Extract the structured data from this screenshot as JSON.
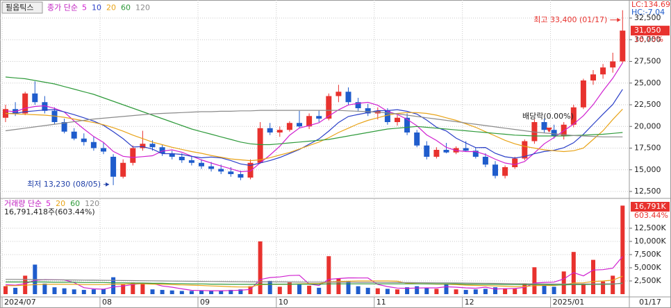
{
  "chart_data": [
    {
      "type": "candlestick",
      "title": "필옵틱스",
      "legend_label": "종가 단순",
      "up_color": "#e8322e",
      "down_color": "#1f5ccc",
      "open": [
        21000,
        22000,
        21500,
        23800,
        22800,
        21800,
        20500,
        19400,
        18600,
        18200,
        17500,
        16500,
        14200,
        15800,
        17500,
        18000,
        17600,
        16900,
        16500,
        16100,
        15800,
        15400,
        15100,
        14800,
        14500,
        14100,
        15800,
        19800,
        19300,
        19600,
        20400,
        20000,
        21200,
        20900,
        23500,
        24000,
        22800,
        22100,
        21500,
        21800,
        20500,
        21000,
        19300,
        17800,
        16500,
        17300,
        17000,
        17500,
        17200,
        16500,
        15600,
        14300,
        15300,
        16300,
        18300,
        20500,
        19600,
        18900,
        20200,
        22200,
        25300,
        26000,
        26800,
        27500
      ],
      "high": [
        22500,
        22800,
        24000,
        25200,
        23500,
        22200,
        20900,
        19800,
        19200,
        18800,
        18200,
        16800,
        16200,
        17800,
        19500,
        18400,
        17900,
        17200,
        16900,
        16500,
        16200,
        15900,
        15600,
        15300,
        14900,
        16200,
        20500,
        20400,
        20000,
        20600,
        21800,
        21500,
        21900,
        23800,
        24800,
        24500,
        23300,
        22600,
        22200,
        22100,
        21300,
        21500,
        19600,
        18300,
        17600,
        18100,
        17700,
        18300,
        17600,
        16900,
        16000,
        15500,
        16500,
        18500,
        20800,
        20900,
        20200,
        20500,
        22500,
        25500,
        26500,
        27200,
        28500,
        33400
      ],
      "low": [
        20500,
        21200,
        21300,
        22500,
        21500,
        20300,
        19200,
        18400,
        17800,
        17200,
        16800,
        13230,
        14000,
        15500,
        17200,
        17200,
        16600,
        16200,
        15800,
        15500,
        15100,
        14800,
        14500,
        14200,
        13800,
        13900,
        15700,
        19000,
        18800,
        19400,
        19800,
        19700,
        20500,
        20700,
        22800,
        22500,
        21800,
        21200,
        20800,
        20200,
        20100,
        19000,
        17600,
        16200,
        16300,
        16900,
        16800,
        17100,
        16300,
        15300,
        14000,
        14000,
        15100,
        16100,
        18000,
        19300,
        18600,
        18500,
        19900,
        22000,
        24800,
        25500,
        26200,
        27300
      ],
      "close": [
        22000,
        21500,
        23800,
        22800,
        21800,
        20500,
        19400,
        18600,
        18200,
        17500,
        17100,
        14200,
        15800,
        17500,
        18000,
        17600,
        16900,
        16500,
        16100,
        15800,
        15400,
        15100,
        14800,
        14500,
        14100,
        15800,
        19800,
        19300,
        19600,
        20400,
        20000,
        21200,
        20900,
        23500,
        24000,
        22800,
        22100,
        21500,
        21800,
        20500,
        21000,
        19300,
        17800,
        16500,
        17300,
        17000,
        17500,
        17200,
        16500,
        15600,
        14300,
        15300,
        16300,
        18300,
        20500,
        19600,
        18900,
        20200,
        22200,
        25300,
        26000,
        26800,
        27500,
        31050
      ],
      "series": [
        {
          "name": "5",
          "color": "#d020d0",
          "values": [
            21800,
            21700,
            22100,
            22300,
            22380,
            22080,
            21660,
            20620,
            19700,
            18840,
            18160,
            17120,
            16560,
            16420,
            16520,
            16620,
            17160,
            17300,
            17020,
            16580,
            16140,
            15780,
            15440,
            15120,
            14780,
            14860,
            15800,
            16700,
            17720,
            18980,
            19820,
            20100,
            20420,
            21200,
            21920,
            22480,
            22660,
            22780,
            22440,
            21740,
            21380,
            20820,
            20080,
            19020,
            18380,
            17580,
            17220,
            17100,
            17100,
            16760,
            16220,
            15780,
            15600,
            15960,
            16940,
            18000,
            18720,
            19500,
            20280,
            21240,
            22520,
            24100,
            25560,
            27330
          ]
        },
        {
          "name": "10",
          "color": "#2a3fc8",
          "values": [
            21500,
            21500,
            21700,
            21800,
            21900,
            21940,
            21680,
            21360,
            21000,
            20610,
            20120,
            19390,
            18590,
            17630,
            17680,
            17390,
            16860,
            16860,
            16770,
            16550,
            16380,
            16470,
            16370,
            16070,
            15680,
            15500,
            15790,
            16070,
            16420,
            16880,
            17340,
            17950,
            18560,
            19460,
            20450,
            21150,
            21380,
            21600,
            21820,
            21830,
            21930,
            21740,
            21430,
            20730,
            19910,
            19480,
            18650,
            18090,
            17560,
            17570,
            16900,
            16500,
            16350,
            16530,
            16850,
            17110,
            17250,
            17550,
            18120,
            19090,
            20260,
            21410,
            22530,
            24280
          ]
        },
        {
          "name": "20",
          "color": "#e8a317",
          "values": [
            21500,
            21450,
            21400,
            21350,
            21300,
            21200,
            21050,
            20850,
            20650,
            20450,
            20200,
            19850,
            19450,
            19000,
            18600,
            18200,
            17900,
            17600,
            17350,
            17100,
            16900,
            16650,
            16450,
            16250,
            16150,
            16050,
            16150,
            16400,
            16700,
            17000,
            17400,
            17800,
            18200,
            18700,
            19300,
            19800,
            20300,
            20700,
            21000,
            21300,
            21500,
            21600,
            21600,
            21500,
            21300,
            21000,
            20700,
            20300,
            19900,
            19400,
            18900,
            18400,
            18000,
            17700,
            17500,
            17300,
            17200,
            17100,
            17200,
            17500,
            18500,
            19500,
            20800,
            22000
          ]
        },
        {
          "name": "60",
          "color": "#2e9a3a",
          "values": [
            25700,
            25600,
            25500,
            25300,
            25100,
            24900,
            24600,
            24300,
            24000,
            23700,
            23300,
            22900,
            22500,
            22100,
            21700,
            21300,
            20900,
            20500,
            20100,
            19700,
            19400,
            19100,
            18800,
            18500,
            18200,
            18000,
            17900,
            17900,
            18000,
            18100,
            18200,
            18300,
            18400,
            18500,
            18700,
            18900,
            19100,
            19300,
            19500,
            19700,
            19800,
            19900,
            20000,
            19900,
            19800,
            19700,
            19600,
            19500,
            19400,
            19300,
            19200,
            19100,
            19000,
            18950,
            18900,
            18900,
            18900,
            18900,
            18950,
            19000,
            19050,
            19100,
            19200,
            19300
          ]
        },
        {
          "name": "120",
          "color": "#8a8a8a",
          "values": [
            19500,
            19650,
            19800,
            19950,
            20100,
            20250,
            20400,
            20550,
            20700,
            20850,
            20950,
            21050,
            21150,
            21250,
            21350,
            21450,
            21500,
            21550,
            21600,
            21650,
            21700,
            21700,
            21750,
            21750,
            21800,
            21800,
            21850,
            21850,
            21850,
            21850,
            21850,
            21850,
            21850,
            21850,
            21850,
            21800,
            21750,
            21700,
            21650,
            21550,
            21450,
            21300,
            21150,
            21000,
            20850,
            20700,
            20550,
            20400,
            20250,
            20100,
            19950,
            19800,
            19650,
            19500,
            19350,
            19250,
            19150,
            19050,
            18950,
            18900,
            18850,
            18800,
            18800,
            18800
          ]
        }
      ],
      "ylim": [
        11780,
        34260
      ],
      "yticks": [
        {
          "value": 12500,
          "label": "12,500"
        },
        {
          "value": 15000,
          "label": "15,000"
        },
        {
          "value": 17500,
          "label": "17,500"
        },
        {
          "value": 20000,
          "label": "20,000"
        },
        {
          "value": 22500,
          "label": "22,500"
        },
        {
          "value": 25000,
          "label": "25,000"
        },
        {
          "value": 27500,
          "label": "27,500"
        },
        {
          "value": 30000,
          "label": "30,000"
        },
        {
          "value": 32500,
          "label": "32,500"
        }
      ],
      "grid": true,
      "annotations": {
        "max": "최고 33,400 (01/17)",
        "min": "최저 13,230 (08/05)",
        "ex_dividend": "배당락(0.00%)"
      },
      "right_labels": {
        "lc": "LC:134.69",
        "hc": "HC:-7.04",
        "last": "31,050",
        "change": "16.73%"
      }
    },
    {
      "type": "bar",
      "title": "거래량 단순",
      "info": "16,791,418주(603.44%)",
      "categories": [
        "2024/07",
        null,
        null,
        null,
        null,
        null,
        null,
        null,
        null,
        null,
        "08",
        null,
        null,
        null,
        null,
        null,
        null,
        null,
        null,
        null,
        "09",
        null,
        null,
        null,
        null,
        null,
        null,
        null,
        "10",
        null,
        null,
        null,
        null,
        null,
        null,
        null,
        null,
        null,
        "11",
        null,
        null,
        null,
        null,
        null,
        null,
        null,
        null,
        "12",
        null,
        null,
        null,
        null,
        null,
        null,
        null,
        null,
        "2025/01",
        null,
        null,
        null,
        null,
        null,
        null,
        "01/17"
      ],
      "values": [
        1500,
        1200,
        3500,
        5600,
        2000,
        1300,
        1100,
        900,
        800,
        900,
        1000,
        3200,
        1800,
        2200,
        2000,
        900,
        800,
        700,
        600,
        600,
        700,
        600,
        700,
        800,
        900,
        1500,
        10000,
        2500,
        1400,
        2200,
        1800,
        1600,
        1200,
        7200,
        3000,
        2400,
        1500,
        1200,
        1100,
        1000,
        900,
        1300,
        1500,
        1200,
        1000,
        2000,
        900,
        800,
        900,
        1000,
        1300,
        1100,
        1000,
        2000,
        5100,
        1600,
        1400,
        4300,
        8000,
        2000,
        6500,
        2400,
        3500,
        16791
      ],
      "series": [
        {
          "name": "5",
          "color": "#d020d0",
          "values": [
            1800,
            1700,
            2000,
            2600,
            2760,
            2720,
            2700,
            2180,
            1220,
            1000,
            940,
            1360,
            1540,
            1820,
            2040,
            2020,
            1540,
            1320,
            1000,
            720,
            680,
            640,
            640,
            680,
            740,
            900,
            2780,
            3140,
            3260,
            3520,
            3580,
            1900,
            1640,
            2800,
            2960,
            3080,
            3060,
            3060,
            1840,
            1440,
            1140,
            1100,
            1160,
            1180,
            1180,
            1400,
            1320,
            1180,
            1120,
            1320,
            980,
            1020,
            1060,
            1280,
            2100,
            2220,
            2280,
            2880,
            4080,
            3460,
            4560,
            4640,
            4920,
            7140
          ]
        },
        {
          "name": "20",
          "color": "#e8a317",
          "values": [
            1600,
            1600,
            1700,
            1800,
            1850,
            1850,
            1850,
            1850,
            1800,
            1800,
            1800,
            1900,
            1900,
            1950,
            1950,
            1900,
            1850,
            1800,
            1750,
            1700,
            1650,
            1550,
            1500,
            1400,
            1350,
            1350,
            1800,
            1850,
            1850,
            1900,
            1950,
            2000,
            2000,
            2300,
            2400,
            2450,
            2500,
            2500,
            2500,
            2500,
            2450,
            2050,
            2000,
            1950,
            1900,
            1900,
            1800,
            1700,
            1650,
            1600,
            1550,
            1500,
            1400,
            1450,
            1600,
            1650,
            1650,
            1800,
            2100,
            2150,
            2400,
            2500,
            2650,
            3400
          ]
        },
        {
          "name": "60",
          "color": "#2e9a3a",
          "values": [
            2300,
            2300,
            2300,
            2300,
            2300,
            2250,
            2250,
            2250,
            2200,
            2200,
            2200,
            2150,
            2150,
            2100,
            2100,
            2050,
            2050,
            2000,
            2000,
            1950,
            1950,
            1900,
            1900,
            1850,
            1850,
            1850,
            1900,
            1900,
            1900,
            1900,
            1900,
            1900,
            1900,
            1950,
            1950,
            1950,
            1950,
            1950,
            1950,
            1950,
            1950,
            1950,
            1950,
            1950,
            1950,
            1950,
            1950,
            1900,
            1900,
            1850,
            1850,
            1800,
            1800,
            1800,
            1800,
            1800,
            1750,
            1750,
            1800,
            1800,
            1850,
            1850,
            1900,
            2100
          ]
        },
        {
          "name": "120",
          "color": "#8a8a8a",
          "values": [
            2800,
            2800,
            2780,
            2760,
            2740,
            2720,
            2700,
            2680,
            2660,
            2640,
            2620,
            2600,
            2580,
            2560,
            2540,
            2520,
            2500,
            2480,
            2460,
            2440,
            2420,
            2400,
            2380,
            2360,
            2340,
            2320,
            2320,
            2320,
            2310,
            2300,
            2290,
            2280,
            2270,
            2260,
            2250,
            2240,
            2230,
            2220,
            2210,
            2200,
            2190,
            2180,
            2170,
            2160,
            2150,
            2140,
            2120,
            2100,
            2080,
            2060,
            2040,
            2020,
            2000,
            1980,
            1960,
            1950,
            1940,
            1930,
            1930,
            1930,
            1940,
            1950,
            1960,
            2000
          ]
        }
      ],
      "ylim": [
        0,
        17632
      ],
      "yticks": [
        {
          "value": 2500,
          "label": "2,500K"
        },
        {
          "value": 5000,
          "label": "5,000K"
        },
        {
          "value": 7500,
          "label": "7,500K"
        },
        {
          "value": 10000,
          "label": "10,000K"
        },
        {
          "value": 12500,
          "label": "12,500K"
        }
      ],
      "grid": true,
      "right_labels": {
        "last": "16,791K",
        "change": "603.44%"
      }
    }
  ]
}
